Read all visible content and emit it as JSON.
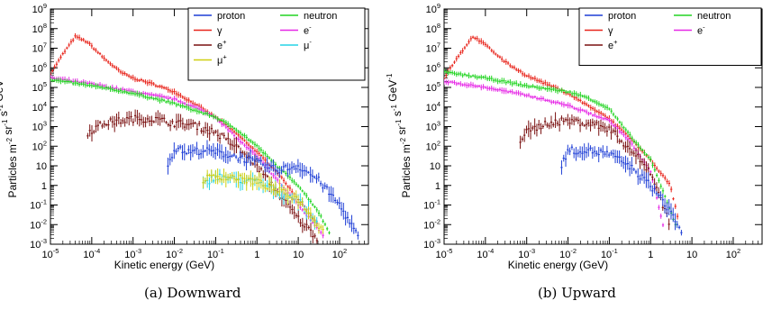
{
  "captions": [
    "(a) Downward",
    "(b) Upward"
  ],
  "colors": {
    "proton": "#1f3fd6",
    "neutron": "#22d422",
    "gamma": "#e8251c",
    "eminus": "#e629e6",
    "eplus": "#7a1111",
    "muminus": "#26d4e6",
    "muplus": "#cfcf10"
  },
  "chart_data": [
    {
      "type": "scatter",
      "panel": "(a) Downward",
      "title": "",
      "xlabel": "Kinetic energy (GeV)",
      "ylabel": "Particles m-2 sr-1 s-1 GeV-1",
      "x_scale": "log",
      "y_scale": "log",
      "xlim": [
        1e-05,
        500
      ],
      "ylim": [
        0.001,
        1000000000
      ],
      "x_ticks": [
        1e-05,
        0.0001,
        0.001,
        0.01,
        0.1,
        1,
        10,
        100
      ],
      "x_tick_labels": [
        [
          "10",
          "-5"
        ],
        [
          "10",
          "-4"
        ],
        [
          "10",
          "-3"
        ],
        [
          "10",
          "-2"
        ],
        [
          "10",
          "-1"
        ],
        [
          "1",
          ""
        ],
        [
          "10",
          ""
        ],
        [
          "10",
          "2"
        ]
      ],
      "y_ticks": [
        0.001,
        0.01,
        0.1,
        1,
        10,
        100,
        1000,
        10000,
        100000,
        1000000,
        10000000,
        100000000,
        1000000000
      ],
      "y_tick_labels": [
        [
          "10",
          "-3"
        ],
        [
          "10",
          "-2"
        ],
        [
          "10",
          "-1"
        ],
        [
          "1",
          ""
        ],
        [
          "10",
          ""
        ],
        [
          "10",
          "2"
        ],
        [
          "10",
          "3"
        ],
        [
          "10",
          "4"
        ],
        [
          "10",
          "5"
        ],
        [
          "10",
          "6"
        ],
        [
          "10",
          "7"
        ],
        [
          "10",
          "8"
        ],
        [
          "10",
          "9"
        ]
      ],
      "legend": {
        "placement": "top-right",
        "entries": [
          {
            "key": "proton",
            "label": "proton",
            "sup": ""
          },
          {
            "key": "neutron",
            "label": "neutron",
            "sup": ""
          },
          {
            "key": "gamma",
            "label": "γ",
            "sup": ""
          },
          {
            "key": "eminus",
            "label": "e",
            "sup": "-"
          },
          {
            "key": "eplus",
            "label": "e",
            "sup": "+"
          },
          {
            "key": "muminus",
            "label": "μ",
            "sup": "-"
          },
          {
            "key": "muplus",
            "label": "μ",
            "sup": "+"
          }
        ]
      },
      "series": [
        {
          "key": "gamma",
          "x_range": [
            1e-05,
            30
          ],
          "points": [
            [
              1e-05,
              500000
            ],
            [
              2e-05,
              5000000
            ],
            [
              4e-05,
              40000000
            ],
            [
              8e-05,
              20000000
            ],
            [
              0.0002,
              3000000
            ],
            [
              0.0005,
              600000
            ],
            [
              0.001,
              300000
            ],
            [
              0.003,
              150000
            ],
            [
              0.01,
              60000
            ],
            [
              0.03,
              15000
            ],
            [
              0.1,
              3000
            ],
            [
              0.3,
              500
            ],
            [
              1,
              50
            ],
            [
              3,
              5
            ],
            [
              10,
              0.2
            ],
            [
              30,
              0.01
            ]
          ]
        },
        {
          "key": "eminus",
          "x_range": [
            1e-05,
            40
          ],
          "points": [
            [
              1e-05,
              300000
            ],
            [
              0.0001,
              150000
            ],
            [
              0.001,
              60000
            ],
            [
              0.01,
              25000
            ],
            [
              0.03,
              10000
            ],
            [
              0.1,
              3000
            ],
            [
              0.3,
              300
            ],
            [
              1,
              30
            ],
            [
              3,
              2
            ],
            [
              10,
              0.1
            ],
            [
              40,
              0.003
            ]
          ]
        },
        {
          "key": "neutron",
          "x_range": [
            1e-05,
            60
          ],
          "points": [
            [
              1e-05,
              250000
            ],
            [
              0.0001,
              120000
            ],
            [
              0.001,
              50000
            ],
            [
              0.01,
              15000
            ],
            [
              0.1,
              3000
            ],
            [
              0.3,
              800
            ],
            [
              1,
              100
            ],
            [
              3,
              10
            ],
            [
              10,
              1
            ],
            [
              30,
              0.05
            ],
            [
              60,
              0.003
            ]
          ]
        },
        {
          "key": "eplus",
          "x_range": [
            8e-05,
            30
          ],
          "points": [
            [
              8e-05,
              500
            ],
            [
              0.0002,
              1500
            ],
            [
              0.001,
              2500
            ],
            [
              0.003,
              2500
            ],
            [
              0.01,
              1500
            ],
            [
              0.03,
              1200
            ],
            [
              0.1,
              500
            ],
            [
              0.3,
              100
            ],
            [
              1,
              10
            ],
            [
              3,
              0.5
            ],
            [
              10,
              0.02
            ],
            [
              30,
              0.002
            ]
          ]
        },
        {
          "key": "proton",
          "x_range": [
            0.007,
            300
          ],
          "points": [
            [
              0.007,
              10
            ],
            [
              0.01,
              80
            ],
            [
              0.02,
              50
            ],
            [
              0.05,
              60
            ],
            [
              0.1,
              50
            ],
            [
              0.3,
              30
            ],
            [
              1,
              15
            ],
            [
              3,
              6
            ],
            [
              10,
              10
            ],
            [
              30,
              2
            ],
            [
              100,
              0.1
            ],
            [
              300,
              0.002
            ]
          ]
        },
        {
          "key": "muminus",
          "x_range": [
            0.05,
            30
          ],
          "points": [
            [
              0.05,
              1
            ],
            [
              0.1,
              3
            ],
            [
              0.3,
              2
            ],
            [
              1,
              1.5
            ],
            [
              3,
              0.5
            ],
            [
              10,
              0.2
            ],
            [
              30,
              0.01
            ]
          ]
        },
        {
          "key": "muplus",
          "x_range": [
            0.05,
            40
          ],
          "points": [
            [
              0.05,
              2
            ],
            [
              0.1,
              3
            ],
            [
              0.3,
              2.5
            ],
            [
              1,
              1.5
            ],
            [
              3,
              0.6
            ],
            [
              10,
              0.2
            ],
            [
              40,
              0.005
            ]
          ]
        }
      ]
    },
    {
      "type": "scatter",
      "panel": "(b) Upward",
      "title": "",
      "xlabel": "Kinetic energy (GeV)",
      "ylabel": "Particles m-2 sr-1 s-1 GeV-1",
      "x_scale": "log",
      "y_scale": "log",
      "xlim": [
        1e-05,
        500
      ],
      "ylim": [
        0.001,
        1000000000
      ],
      "x_ticks": [
        1e-05,
        0.0001,
        0.001,
        0.01,
        0.1,
        1,
        10,
        100
      ],
      "x_tick_labels": [
        [
          "10",
          "-5"
        ],
        [
          "10",
          "-4"
        ],
        [
          "10",
          "-3"
        ],
        [
          "10",
          "-2"
        ],
        [
          "10",
          "-1"
        ],
        [
          "1",
          ""
        ],
        [
          "10",
          ""
        ],
        [
          "10",
          "2"
        ]
      ],
      "y_ticks": [
        0.001,
        0.01,
        0.1,
        1,
        10,
        100,
        1000,
        10000,
        100000,
        1000000,
        10000000,
        100000000,
        1000000000
      ],
      "y_tick_labels": [
        [
          "10",
          "-3"
        ],
        [
          "10",
          "-2"
        ],
        [
          "10",
          "-1"
        ],
        [
          "1",
          ""
        ],
        [
          "10",
          ""
        ],
        [
          "10",
          "2"
        ],
        [
          "10",
          "3"
        ],
        [
          "10",
          "4"
        ],
        [
          "10",
          "5"
        ],
        [
          "10",
          "6"
        ],
        [
          "10",
          "7"
        ],
        [
          "10",
          "8"
        ],
        [
          "10",
          "9"
        ]
      ],
      "legend": {
        "placement": "top-right",
        "entries": [
          {
            "key": "proton",
            "label": "proton",
            "sup": ""
          },
          {
            "key": "neutron",
            "label": "neutron",
            "sup": ""
          },
          {
            "key": "gamma",
            "label": "γ",
            "sup": ""
          },
          {
            "key": "eminus",
            "label": "e",
            "sup": "-"
          },
          {
            "key": "eplus",
            "label": "e",
            "sup": "+"
          }
        ]
      },
      "series": [
        {
          "key": "gamma",
          "x_range": [
            1e-05,
            5
          ],
          "points": [
            [
              1e-05,
              300000
            ],
            [
              2e-05,
              3000000
            ],
            [
              5e-05,
              40000000
            ],
            [
              0.0001,
              15000000
            ],
            [
              0.0003,
              2000000
            ],
            [
              0.001,
              400000
            ],
            [
              0.003,
              150000
            ],
            [
              0.01,
              50000
            ],
            [
              0.03,
              12000
            ],
            [
              0.1,
              2500
            ],
            [
              0.3,
              300
            ],
            [
              1,
              20
            ],
            [
              3,
              1
            ],
            [
              5,
              0.01
            ]
          ]
        },
        {
          "key": "neutron",
          "x_range": [
            1e-05,
            4
          ],
          "points": [
            [
              1e-05,
              600000
            ],
            [
              0.0001,
              300000
            ],
            [
              0.001,
              120000
            ],
            [
              0.01,
              60000
            ],
            [
              0.03,
              30000
            ],
            [
              0.1,
              8000
            ],
            [
              0.3,
              400
            ],
            [
              1,
              20
            ],
            [
              2,
              0.5
            ],
            [
              4,
              0.01
            ]
          ]
        },
        {
          "key": "eminus",
          "x_range": [
            1e-05,
            2
          ],
          "points": [
            [
              1e-05,
              200000
            ],
            [
              0.0001,
              100000
            ],
            [
              0.001,
              40000
            ],
            [
              0.01,
              12000
            ],
            [
              0.1,
              2000
            ],
            [
              0.3,
              200
            ],
            [
              1,
              5
            ],
            [
              2,
              0.01
            ]
          ]
        },
        {
          "key": "eplus",
          "x_range": [
            0.0007,
            3
          ],
          "points": [
            [
              0.0007,
              200
            ],
            [
              0.001,
              500
            ],
            [
              0.003,
              1500
            ],
            [
              0.01,
              2000
            ],
            [
              0.03,
              1500
            ],
            [
              0.1,
              800
            ],
            [
              0.3,
              80
            ],
            [
              1,
              5
            ],
            [
              3,
              0.01
            ]
          ]
        },
        {
          "key": "proton",
          "x_range": [
            0.007,
            6
          ],
          "points": [
            [
              0.007,
              10
            ],
            [
              0.01,
              60
            ],
            [
              0.03,
              60
            ],
            [
              0.1,
              40
            ],
            [
              0.3,
              10
            ],
            [
              1,
              1
            ],
            [
              3,
              0.05
            ],
            [
              6,
              0.003
            ]
          ]
        }
      ]
    }
  ]
}
